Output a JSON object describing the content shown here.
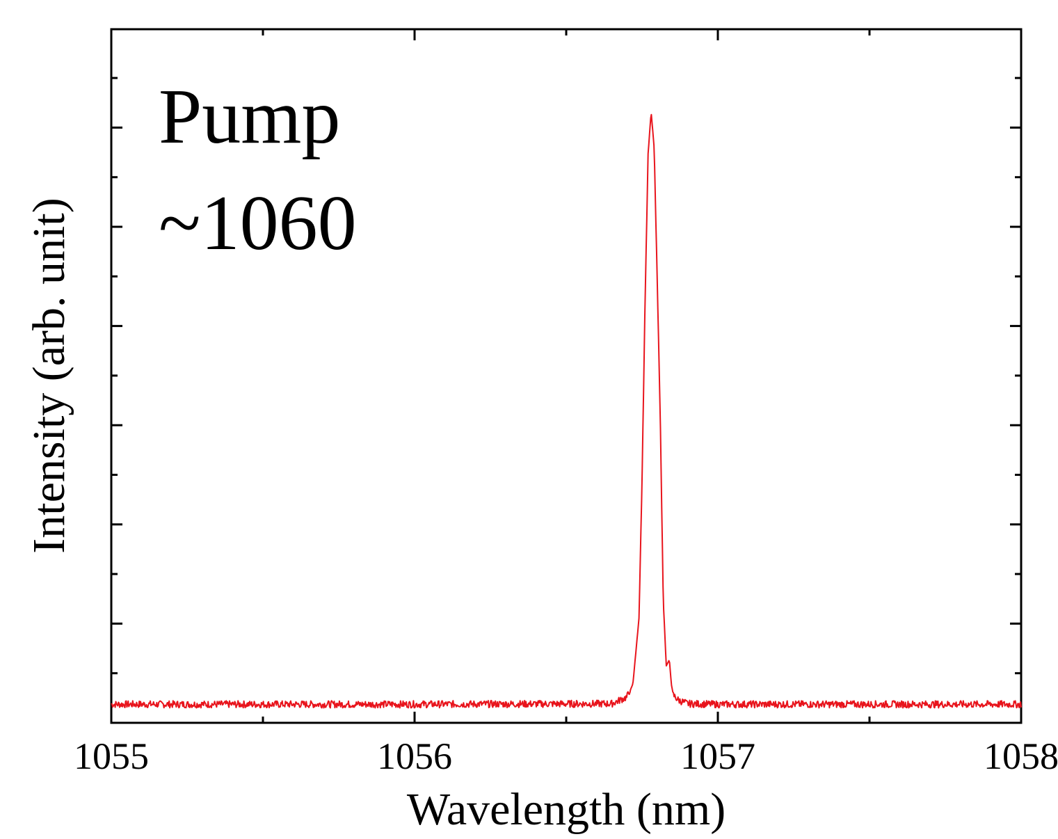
{
  "chart_data": {
    "type": "line",
    "title": "",
    "xlabel": "Wavelength (nm)",
    "ylabel": "Intensity (arb. unit)",
    "xlim": [
      1055,
      1058
    ],
    "ylim": [
      0,
      1.0
    ],
    "x_ticks": [
      "1055",
      "1056",
      "1057",
      "1058"
    ],
    "y_tick_labels_shown": false,
    "grid": false,
    "legend": "none",
    "annotations": [
      "Pump",
      "~1060"
    ],
    "colors": {
      "series": "#e8141c",
      "axis": "#000000"
    },
    "series": [
      {
        "values_note_free": true,
        "x": [
          1055.0,
          1056.0,
          1056.65,
          1056.7,
          1056.72,
          1056.74,
          1056.75,
          1056.76,
          1056.77,
          1056.78,
          1056.79,
          1056.8,
          1056.81,
          1056.82,
          1056.83,
          1056.84,
          1056.85,
          1056.87,
          1056.9,
          1057.0,
          1058.0
        ],
        "y": [
          0.003,
          0.003,
          0.004,
          0.015,
          0.04,
          0.15,
          0.38,
          0.68,
          0.93,
          1.0,
          0.94,
          0.72,
          0.49,
          0.18,
          0.07,
          0.08,
          0.02,
          0.01,
          0.004,
          0.003,
          0.003
        ]
      }
    ]
  }
}
